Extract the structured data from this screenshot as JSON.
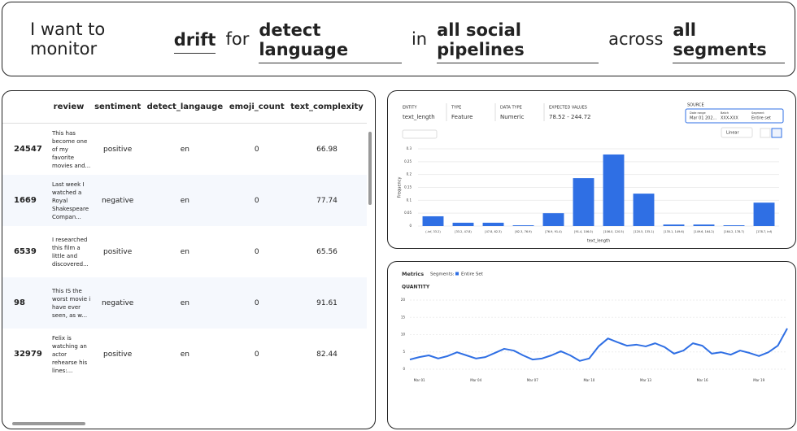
{
  "header": [
    "I want to monitor",
    "drift",
    "for",
    "detect language",
    "in",
    "all social pipelines",
    "across",
    "all segments"
  ],
  "table": {
    "columns": [
      "review",
      "sentiment",
      "detect_langauge",
      "emoji_count",
      "text_complexity"
    ],
    "rows": [
      [
        "24547",
        "This has become one of my favorite movies and...",
        "positive",
        "en",
        "0",
        "66.98"
      ],
      [
        "1669",
        "Last week I watched a Royal Shakespeare Compan...",
        "negative",
        "en",
        "0",
        "77.74"
      ],
      [
        "6539",
        "I researched this film a little and discovered...",
        "positive",
        "en",
        "0",
        "65.56"
      ],
      [
        "98",
        "This IS the worst movie i have ever seen, as w...",
        "negative",
        "en",
        "0",
        "91.61"
      ],
      [
        "32979",
        "Felix is watching an actor rehearse his lines:...",
        "positive",
        "en",
        "0",
        "82.44"
      ]
    ]
  },
  "profile": {
    "fields": [
      [
        "ENTITY",
        "text_length"
      ],
      [
        "TYPE",
        "Feature"
      ],
      [
        "DATA TYPE",
        "Numeric"
      ],
      [
        "EXPECTED VALUES",
        "78.52 - 244.72"
      ]
    ],
    "source": {
      "title": "SOURCE",
      "items": [
        [
          "Date range",
          "Mar 01 202..."
        ],
        [
          "Batch",
          "XXX-XXX"
        ],
        [
          "Segment",
          "Entire set"
        ]
      ]
    },
    "scale": "Linear"
  },
  "histogram": {
    "type": "bar",
    "ylabel": "Frequency",
    "xlabel": "text_length",
    "color": "#2f6fe4",
    "categories": [
      "(-inf, 33.2)",
      "[33.2, 47.8)",
      "[47.8, 62.3)",
      "[62.3, 76.9)",
      "[76.9, 91.4)",
      "[91.4, 106.0)",
      "[106.0, 120.5)",
      "[120.5, 135.1)",
      "[135.1, 149.6)",
      "[149.6, 164.2)",
      "[164.2, 178.7)",
      "[178.7, inf)"
    ],
    "values": [
      0.038,
      0.013,
      0.013,
      0.003,
      0.05,
      0.186,
      0.278,
      0.126,
      0.006,
      0.006,
      0.003,
      0.091
    ],
    "ylim": [
      0,
      0.3
    ],
    "yticks": [
      0,
      0.05,
      0.1,
      0.15,
      0.2,
      0.25,
      0.3
    ],
    "grid": true
  },
  "metrics_chart": {
    "type": "line",
    "tabs": [
      "Metrics",
      "Segments:"
    ],
    "title": "QUANTITY",
    "x": [
      0,
      1,
      2,
      3,
      4,
      5,
      6,
      7,
      8,
      9,
      10,
      11,
      12,
      13,
      14,
      15,
      16,
      17,
      18,
      19,
      20,
      21,
      22,
      23,
      24,
      25,
      26,
      27,
      28,
      29,
      30,
      31,
      32,
      33,
      34,
      35,
      36,
      37,
      38,
      39,
      40
    ],
    "xlim": [
      0,
      40
    ],
    "xticks": [
      {
        "value": 1,
        "label": "Mar 01"
      },
      {
        "value": 7,
        "label": "Mar 04"
      },
      {
        "value": 13,
        "label": "Mar 07"
      },
      {
        "value": 19,
        "label": "Mar 10"
      },
      {
        "value": 25,
        "label": "Mar 13"
      },
      {
        "value": 31,
        "label": "Mar 16"
      },
      {
        "value": 37,
        "label": "Mar 19"
      }
    ],
    "ylim": [
      0,
      20
    ],
    "yticks": [
      0,
      5,
      10,
      15,
      20
    ],
    "grid": true,
    "series": [
      {
        "name": "Entire Set",
        "color": "#2f6fe4",
        "values": [
          2.8,
          3.5,
          4.0,
          3.1,
          3.8,
          4.9,
          4.0,
          3.1,
          3.5,
          4.7,
          5.9,
          5.4,
          4.0,
          2.8,
          3.1,
          4.0,
          5.2,
          4.0,
          2.4,
          3.1,
          6.6,
          8.9,
          7.8,
          6.8,
          7.1,
          6.6,
          7.5,
          6.4,
          4.5,
          5.4,
          7.5,
          6.8,
          4.5,
          4.9,
          4.2,
          5.4,
          4.7,
          3.8,
          4.9,
          6.8,
          11.8
        ]
      }
    ]
  }
}
